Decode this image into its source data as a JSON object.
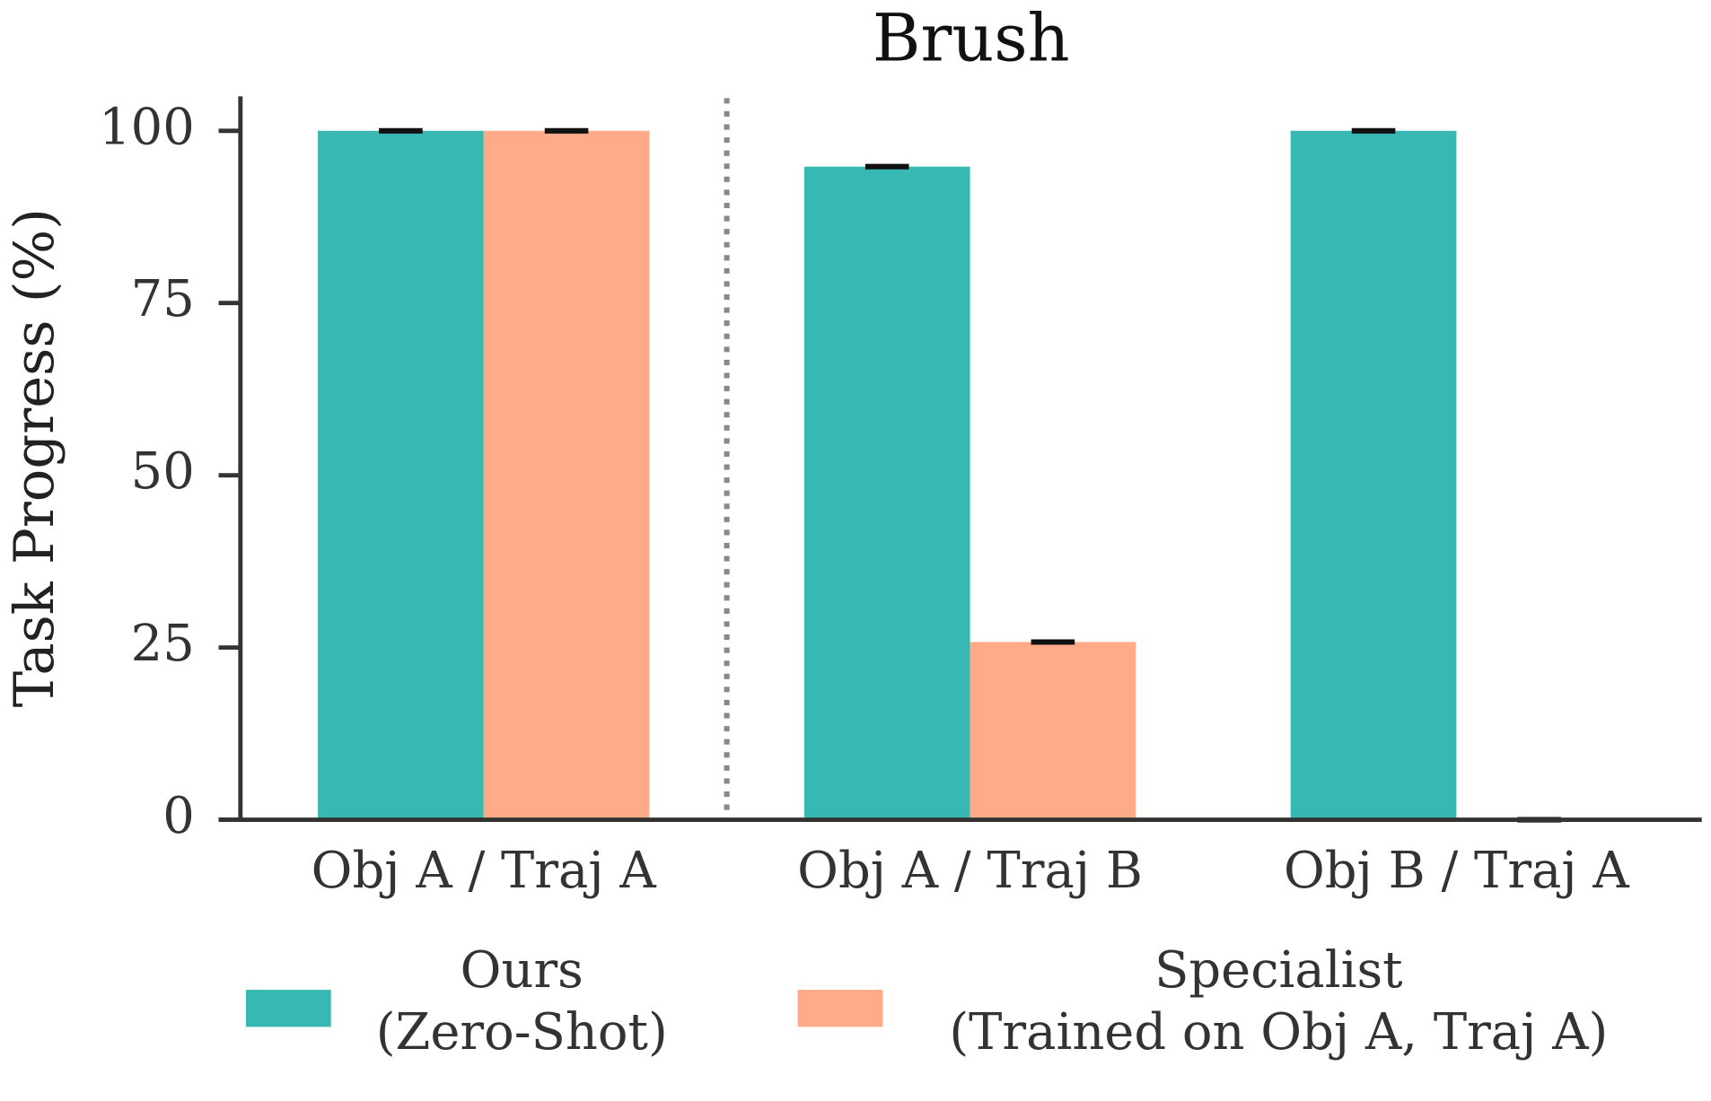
{
  "chart_data": {
    "type": "bar",
    "title": "Brush",
    "y_label": "Task Progress (%)",
    "categories": [
      "Obj A / Traj A",
      "Obj A / Traj B",
      "Obj B / Traj A"
    ],
    "series": [
      {
        "name": "Ours\n(Zero-Shot)",
        "color": "#38b8b2",
        "values": [
          100,
          94.8,
          100
        ],
        "errors": [
          0.3,
          0.3,
          0.3
        ]
      },
      {
        "name": "Specialist\n(Trained on Obj A, Traj A)",
        "color": "#ffaa88",
        "values": [
          100,
          25.8,
          0
        ],
        "errors": [
          0.3,
          0.3,
          0.3
        ]
      }
    ],
    "ylim": [
      0,
      105
    ],
    "yticks": [
      0,
      25,
      50,
      75,
      100
    ],
    "grid": false
  }
}
